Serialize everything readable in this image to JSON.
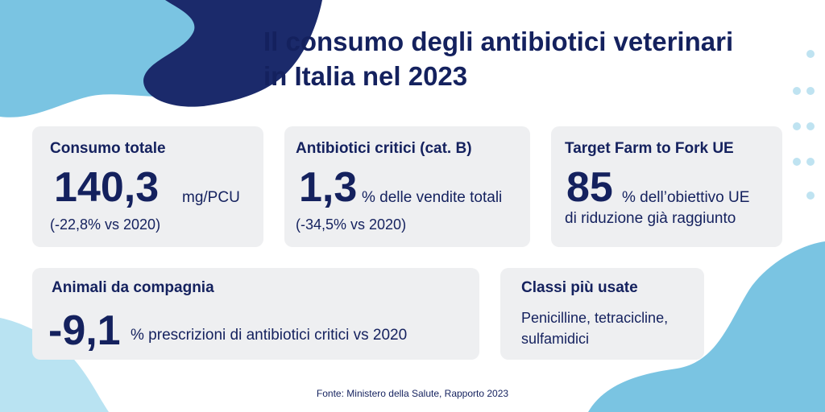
{
  "header": {
    "title_line1": "Il consumo degli antibiotici veterinari",
    "title_line2": "in Italia nel 2023"
  },
  "cards": {
    "consumo": {
      "title": "Consumo totale",
      "value": "140,3",
      "unit": "mg/PCU",
      "note": "(-22,8% vs 2020)"
    },
    "critici": {
      "title": "Antibiotici critici (cat. B)",
      "value": "1,3",
      "unit": "% delle vendite totali",
      "note": "(-34,5% vs 2020)"
    },
    "target": {
      "title": "Target Farm to Fork UE",
      "value": "85",
      "unit": "% dell’obiettivo UE",
      "note": "di riduzione già raggiunto"
    },
    "compagnia": {
      "title": "Animali da compagnia",
      "value": "-9,1",
      "unit": "% prescrizioni di antibiotici critici vs 2020"
    },
    "classi": {
      "title": "Classi più usate",
      "line1": "Penicilline, tetracicline,",
      "line2": "sulfamidici"
    }
  },
  "footer": {
    "source": "Fonte: Ministero della Salute, Rapporto 2023"
  },
  "colors": {
    "navy": "#14215e",
    "dark_blob": "#1b2a6b",
    "mid_blue": "#7ac4e2",
    "light_blue": "#b9e3f2",
    "card_bg": "#eeeff1"
  }
}
